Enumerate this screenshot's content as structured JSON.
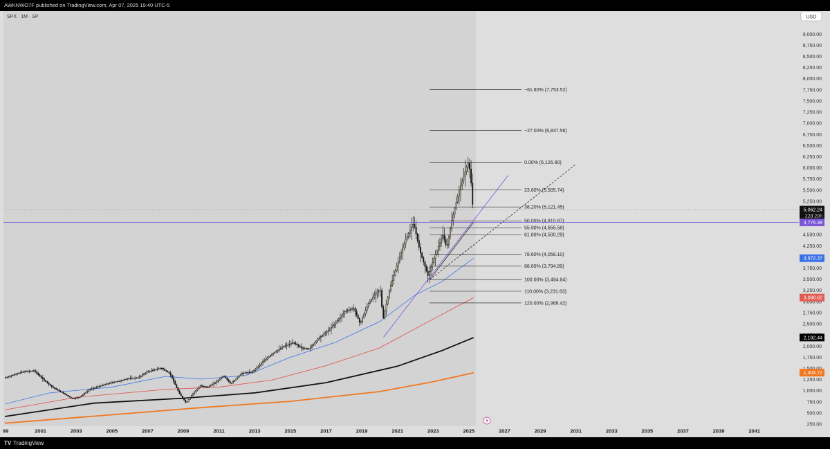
{
  "header": {
    "publisher_text": "AWKNWO7F published on TradingView.com, Apr 07, 2025 19:40 UTC-5"
  },
  "footer": {
    "logo_text": "TV",
    "brand": "TradingView"
  },
  "chart_data": {
    "type": "candlestick",
    "symbol_label": "SPX · 1M · SP",
    "currency": "USD",
    "xlim": [
      1999.0,
      2042.6
    ],
    "ylim": [
      250,
      9300
    ],
    "x_ticks": [
      "99",
      "2001",
      "2003",
      "2005",
      "2007",
      "2009",
      "2011",
      "2013",
      "2015",
      "2017",
      "2019",
      "2021",
      "2023",
      "2025",
      "2027",
      "2029",
      "2031",
      "2033",
      "2035",
      "2037",
      "2039",
      "2041"
    ],
    "y_ticks": [
      "250.00",
      "500.00",
      "750.00",
      "1,000.00",
      "1,250.00",
      "1,500.00",
      "1,750.00",
      "2,000.00",
      "2,250.00",
      "2,500.00",
      "2,750.00",
      "3,000.00",
      "3,250.00",
      "3,500.00",
      "3,750.00",
      "4,000.00",
      "4,250.00",
      "4,500.00",
      "4,750.00",
      "5,000.00",
      "5,250.00",
      "5,500.00",
      "5,750.00",
      "6,000.00",
      "6,250.00",
      "6,500.00",
      "6,750.00",
      "7,000.00",
      "7,250.00",
      "7,500.00",
      "7,750.00",
      "8,000.00",
      "8,250.00",
      "8,500.00",
      "8,750.00",
      "9,000.00"
    ],
    "price_path": [
      [
        1999.0,
        1280
      ],
      [
        1999.5,
        1350
      ],
      [
        2000.0,
        1420
      ],
      [
        2000.7,
        1450
      ],
      [
        2001.0,
        1320
      ],
      [
        2001.7,
        1080
      ],
      [
        2002.5,
        900
      ],
      [
        2002.8,
        820
      ],
      [
        2003.2,
        850
      ],
      [
        2003.8,
        1030
      ],
      [
        2004.5,
        1120
      ],
      [
        2005.0,
        1180
      ],
      [
        2005.5,
        1220
      ],
      [
        2006.0,
        1280
      ],
      [
        2006.5,
        1290
      ],
      [
        2007.0,
        1420
      ],
      [
        2007.8,
        1510
      ],
      [
        2008.3,
        1380
      ],
      [
        2008.8,
        950
      ],
      [
        2009.2,
        720
      ],
      [
        2009.5,
        900
      ],
      [
        2010.0,
        1110
      ],
      [
        2010.4,
        1080
      ],
      [
        2010.9,
        1200
      ],
      [
        2011.3,
        1340
      ],
      [
        2011.7,
        1150
      ],
      [
        2012.3,
        1390
      ],
      [
        2012.9,
        1420
      ],
      [
        2013.5,
        1650
      ],
      [
        2014.0,
        1820
      ],
      [
        2014.6,
        1980
      ],
      [
        2015.2,
        2080
      ],
      [
        2015.7,
        1950
      ],
      [
        2016.1,
        1940
      ],
      [
        2016.6,
        2170
      ],
      [
        2017.2,
        2360
      ],
      [
        2017.9,
        2680
      ],
      [
        2018.1,
        2780
      ],
      [
        2018.6,
        2850
      ],
      [
        2018.95,
        2500
      ],
      [
        2019.4,
        2950
      ],
      [
        2019.9,
        3230
      ],
      [
        2020.1,
        3250
      ],
      [
        2020.22,
        2580
      ],
      [
        2020.6,
        3280
      ],
      [
        2021.0,
        3800
      ],
      [
        2021.5,
        4400
      ],
      [
        2021.95,
        4760
      ],
      [
        2022.3,
        4130
      ],
      [
        2022.75,
        3580
      ],
      [
        2023.2,
        4100
      ],
      [
        2023.6,
        4500
      ],
      [
        2023.8,
        4200
      ],
      [
        2024.1,
        4850
      ],
      [
        2024.5,
        5500
      ],
      [
        2024.9,
        6000
      ],
      [
        2025.0,
        6100
      ],
      [
        2025.1,
        5950
      ],
      [
        2025.18,
        5600
      ],
      [
        2025.27,
        5060
      ]
    ],
    "moving_averages": [
      {
        "color": "#4a7fe8",
        "last": "3,972.37",
        "points": [
          [
            1999.0,
            700
          ],
          [
            2001.5,
            950
          ],
          [
            2005.0,
            1080
          ],
          [
            2008.0,
            1320
          ],
          [
            2010.0,
            1260
          ],
          [
            2012.5,
            1340
          ],
          [
            2015.0,
            1750
          ],
          [
            2017.5,
            2080
          ],
          [
            2020.0,
            2550
          ],
          [
            2022.0,
            3150
          ],
          [
            2023.5,
            3450
          ],
          [
            2025.27,
            3972
          ]
        ]
      },
      {
        "color": "#e25a52",
        "last": "3,088.62",
        "points": [
          [
            1999.0,
            570
          ],
          [
            2003.0,
            850
          ],
          [
            2008.0,
            1030
          ],
          [
            2011.0,
            1080
          ],
          [
            2014.0,
            1240
          ],
          [
            2017.0,
            1560
          ],
          [
            2020.0,
            1960
          ],
          [
            2022.5,
            2500
          ],
          [
            2025.27,
            3088
          ]
        ]
      },
      {
        "color": "#111111",
        "last": "2,192.44",
        "points": [
          [
            1999.0,
            420
          ],
          [
            2004.0,
            720
          ],
          [
            2009.0,
            830
          ],
          [
            2013.0,
            950
          ],
          [
            2017.0,
            1180
          ],
          [
            2021.0,
            1550
          ],
          [
            2023.5,
            1900
          ],
          [
            2025.27,
            2192
          ]
        ]
      },
      {
        "color": "#f07820",
        "last": "1,404.72",
        "points": [
          [
            1999.0,
            270
          ],
          [
            2005.0,
            460
          ],
          [
            2010.0,
            620
          ],
          [
            2015.0,
            760
          ],
          [
            2020.0,
            980
          ],
          [
            2023.0,
            1200
          ],
          [
            2025.27,
            1404
          ]
        ]
      }
    ],
    "fib_x_range": [
      2022.8,
      2027.95
    ],
    "fib_levels": [
      {
        "label": "−61.80% (7,753.52)",
        "price": 7753.52
      },
      {
        "label": "−27.00% (6,837.56)",
        "price": 6837.56
      },
      {
        "label": "0.00% (6,126.90)",
        "price": 6126.9
      },
      {
        "label": "23.60% (5,505.74)",
        "price": 5505.74
      },
      {
        "label": "38.20% (5,121.45)",
        "price": 5121.45
      },
      {
        "label": "50.00% (4,810.87)",
        "price": 4810.87
      },
      {
        "label": "55.90% (4,655.58)",
        "price": 4655.58
      },
      {
        "label": "61.80% (4,500.29)",
        "price": 4500.29
      },
      {
        "label": "78.60% (4,058.10)",
        "price": 4058.1
      },
      {
        "label": "88.60% (3,794.89)",
        "price": 3794.89
      },
      {
        "label": "100.00% (3,494.84)",
        "price": 3494.84
      },
      {
        "label": "110.00% (3,231.63)",
        "price": 3231.63
      },
      {
        "label": "120.00% (2,968.42)",
        "price": 2968.42
      }
    ],
    "trend_lines": [
      {
        "color": "#7a55d6",
        "style": "solid",
        "from": [
          2020.22,
          2200
        ],
        "to": [
          2027.2,
          5830
        ]
      },
      {
        "color": "#222222",
        "style": "solid",
        "from": [
          2022.8,
          3490
        ],
        "to": [
          2025.27,
          4780
        ]
      },
      {
        "color": "#222222",
        "style": "dashed",
        "from": [
          2022.8,
          3490
        ],
        "to": [
          2031.0,
          6080
        ]
      }
    ],
    "current_price": {
      "value": 5062.24,
      "label": "5,062.24",
      "countdown": "22d 20h"
    },
    "purple_level": {
      "value": 4776.38,
      "label": "4,776.38"
    },
    "future_region_start": 2025.4
  }
}
